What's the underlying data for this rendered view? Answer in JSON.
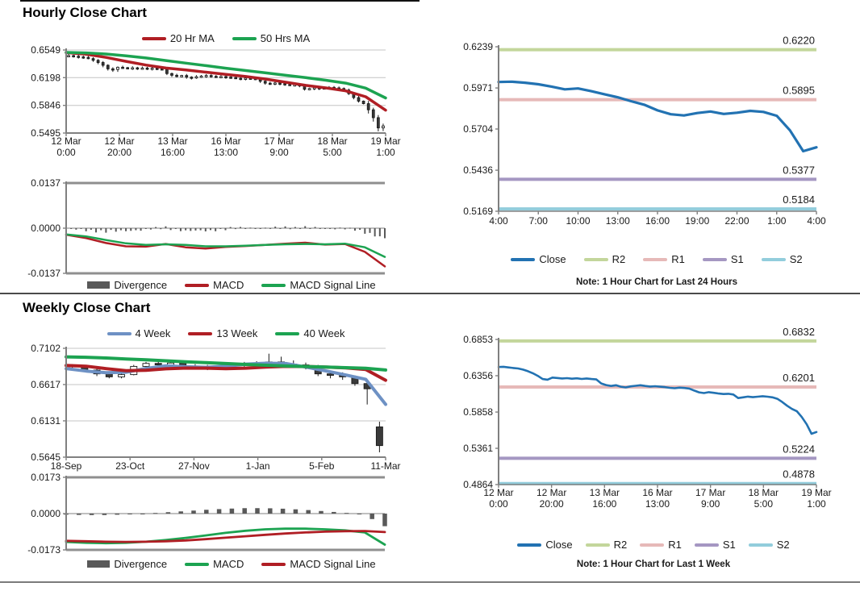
{
  "page": {
    "hourly_title": "Hourly Close Chart",
    "weekly_title": "Weekly Close Chart"
  },
  "colors": {
    "dark_red": "#B01E24",
    "green": "#1CA351",
    "close_blue": "#2272B2",
    "four_week_blue": "#6E91C4",
    "r2_green": "#C3D69B",
    "r1_pink": "#E6B9B8",
    "s1_purple": "#A597C2",
    "s2_cyan": "#92CDDC",
    "divergence_gray": "#595959",
    "grid_gray": "#C4C4C4",
    "axis_gray": "#808080"
  },
  "chart_data": [
    {
      "id": "hourly_close",
      "type": "candlestick",
      "title": "Hourly Close Chart",
      "ylim": [
        0.5495,
        0.6549
      ],
      "y_ticks": [
        {
          "label": "0.6549",
          "v": 0.6549
        },
        {
          "label": "0.6198",
          "v": 0.6198
        },
        {
          "label": "0.5846",
          "v": 0.5846
        },
        {
          "label": "0.5495",
          "v": 0.5495
        }
      ],
      "gridlines": true,
      "x_labels": [
        [
          "12 Mar",
          "0:00"
        ],
        [
          "12 Mar",
          "20:00"
        ],
        [
          "13 Mar",
          "16:00"
        ],
        [
          "16 Mar",
          "13:00"
        ],
        [
          "17 Mar",
          "9:00"
        ],
        [
          "18 Mar",
          "5:00"
        ],
        [
          "19 Mar",
          "1:00"
        ]
      ],
      "legend": [
        {
          "label": "20 Hr MA",
          "color": "#B01E24"
        },
        {
          "label": "50 Hrs MA",
          "color": "#1CA351"
        }
      ],
      "close_values": [
        0.6475,
        0.6478,
        0.647,
        0.6462,
        0.6455,
        0.644,
        0.6418,
        0.639,
        0.6355,
        0.631,
        0.6302,
        0.633,
        0.6325,
        0.6318,
        0.6323,
        0.6315,
        0.632,
        0.6312,
        0.6318,
        0.631,
        0.6305,
        0.625,
        0.6228,
        0.6215,
        0.6225,
        0.6205,
        0.6195,
        0.621,
        0.6218,
        0.6225,
        0.6215,
        0.6208,
        0.6212,
        0.6205,
        0.62,
        0.619,
        0.6185,
        0.6192,
        0.6188,
        0.618,
        0.6152,
        0.6128,
        0.6118,
        0.613,
        0.6122,
        0.6112,
        0.6105,
        0.6108,
        0.6098,
        0.605,
        0.606,
        0.607,
        0.6062,
        0.6068,
        0.6075,
        0.6068,
        0.606,
        0.604,
        0.5995,
        0.5945,
        0.59,
        0.5868,
        0.579,
        0.569,
        0.556,
        0.5585
      ],
      "series": [
        {
          "name": "20 Hr MA",
          "color": "#B01E24",
          "width": 3.5,
          "values": [
            0.6515,
            0.6495,
            0.6455,
            0.6405,
            0.6358,
            0.632,
            0.6295,
            0.6268,
            0.624,
            0.6212,
            0.618,
            0.614,
            0.61,
            0.6068,
            0.603,
            0.5955,
            0.5785
          ]
        },
        {
          "name": "50 Hrs MA",
          "color": "#1CA351",
          "width": 3.5,
          "values": [
            0.6518,
            0.6512,
            0.6498,
            0.6475,
            0.6448,
            0.6415,
            0.6382,
            0.635,
            0.6318,
            0.6288,
            0.6258,
            0.6228,
            0.6198,
            0.6165,
            0.6128,
            0.6065,
            0.594
          ]
        }
      ]
    },
    {
      "id": "hourly_macd",
      "type": "macd",
      "ylim": [
        -0.0137,
        0.0137
      ],
      "y_ticks": [
        {
          "label": "0.0137",
          "v": 0.0137
        },
        {
          "label": "0.0000",
          "v": 0
        },
        {
          "label": "-0.0137",
          "v": -0.0137
        }
      ],
      "legend": [
        {
          "label": "Divergence",
          "color": "#595959",
          "bar": true
        },
        {
          "label": "MACD",
          "color": "#B01E24"
        },
        {
          "label": "MACD Signal Line",
          "color": "#1CA351"
        }
      ],
      "bars": {
        "count": 65,
        "color": "#595959",
        "jitter": 0.0006
      },
      "series": [
        {
          "name": "MACD",
          "color": "#B01E24",
          "width": 2.5,
          "values": [
            -0.002,
            -0.003,
            -0.0045,
            -0.0055,
            -0.0056,
            -0.0048,
            -0.0058,
            -0.0062,
            -0.0057,
            -0.0054,
            -0.0051,
            -0.0047,
            -0.0044,
            -0.005,
            -0.0048,
            -0.0072,
            -0.0116
          ]
        },
        {
          "name": "MACD Signal Line",
          "color": "#1CA351",
          "width": 2.5,
          "values": [
            -0.0019,
            -0.0025,
            -0.0036,
            -0.0046,
            -0.0051,
            -0.0049,
            -0.0051,
            -0.0055,
            -0.0055,
            -0.0053,
            -0.0051,
            -0.0049,
            -0.0048,
            -0.0049,
            -0.0047,
            -0.0058,
            -0.0087
          ]
        }
      ]
    },
    {
      "id": "hourly_sr",
      "type": "line",
      "ylim": [
        0.5169,
        0.6239
      ],
      "y_ticks": [
        {
          "label": "0.6239",
          "v": 0.6239
        },
        {
          "label": "0.5971",
          "v": 0.5971
        },
        {
          "label": "0.5704",
          "v": 0.5704
        },
        {
          "label": "0.5436",
          "v": 0.5436
        },
        {
          "label": "0.5169",
          "v": 0.5169
        }
      ],
      "x_labels": [
        "4:00",
        "7:00",
        "10:00",
        "13:00",
        "16:00",
        "19:00",
        "22:00",
        "1:00",
        "4:00"
      ],
      "hlines": [
        {
          "name": "R2",
          "label": "0.6220",
          "value": 0.622,
          "color": "#C3D69B"
        },
        {
          "name": "R1",
          "label": "0.5895",
          "value": 0.5895,
          "color": "#E6B9B8"
        },
        {
          "name": "S1",
          "label": "0.5377",
          "value": 0.5377,
          "color": "#A597C2"
        },
        {
          "name": "S2",
          "label": "0.5184",
          "value": 0.5184,
          "color": "#92CDDC"
        }
      ],
      "legend": [
        {
          "label": "Close",
          "color": "#2272B2"
        },
        {
          "label": "R2",
          "color": "#C3D69B"
        },
        {
          "label": "R1",
          "color": "#E6B9B8"
        },
        {
          "label": "S1",
          "color": "#A597C2"
        },
        {
          "label": "S2",
          "color": "#92CDDC"
        }
      ],
      "note": "Note: 1 Hour Chart for Last 24 Hours",
      "series": [
        {
          "name": "Close",
          "color": "#2272B2",
          "width": 3.2,
          "values": [
            0.601,
            0.6012,
            0.6005,
            0.5995,
            0.598,
            0.5962,
            0.5968,
            0.595,
            0.593,
            0.591,
            0.5885,
            0.5862,
            0.5825,
            0.58,
            0.5792,
            0.5808,
            0.5818,
            0.5802,
            0.581,
            0.5822,
            0.5815,
            0.579,
            0.5695,
            0.556,
            0.5585
          ]
        }
      ]
    },
    {
      "id": "weekly_close",
      "type": "candlestick",
      "title": "Weekly Close Chart",
      "ylim": [
        0.5645,
        0.7102
      ],
      "y_ticks": [
        {
          "label": "0.7102",
          "v": 0.7102
        },
        {
          "label": "0.6617",
          "v": 0.6617
        },
        {
          "label": "0.6131",
          "v": 0.6131
        },
        {
          "label": "0.5645",
          "v": 0.5645
        }
      ],
      "gridlines": true,
      "x_labels": [
        "18-Sep",
        "23-Oct",
        "27-Nov",
        "1-Jan",
        "5-Feb",
        "11-Mar"
      ],
      "legend": [
        {
          "label": "4 Week",
          "color": "#6E91C4"
        },
        {
          "label": "13 Week",
          "color": "#B01E24"
        },
        {
          "label": "40 Week",
          "color": "#1CA351"
        }
      ],
      "candles": [
        [
          0.687,
          0.689,
          0.684,
          0.6855
        ],
        [
          0.6855,
          0.6865,
          0.679,
          0.681
        ],
        [
          0.681,
          0.683,
          0.673,
          0.676
        ],
        [
          0.676,
          0.679,
          0.67,
          0.672
        ],
        [
          0.672,
          0.677,
          0.67,
          0.675
        ],
        [
          0.675,
          0.688,
          0.674,
          0.686
        ],
        [
          0.686,
          0.692,
          0.684,
          0.69
        ],
        [
          0.69,
          0.693,
          0.686,
          0.688
        ],
        [
          0.688,
          0.693,
          0.686,
          0.6905
        ],
        [
          0.6905,
          0.692,
          0.684,
          0.686
        ],
        [
          0.686,
          0.689,
          0.682,
          0.685
        ],
        [
          0.685,
          0.688,
          0.681,
          0.684
        ],
        [
          0.684,
          0.687,
          0.682,
          0.685
        ],
        [
          0.685,
          0.69,
          0.683,
          0.688
        ],
        [
          0.688,
          0.692,
          0.685,
          0.6895
        ],
        [
          0.6895,
          0.693,
          0.686,
          0.6905
        ],
        [
          0.6905,
          0.703,
          0.687,
          0.692
        ],
        [
          0.692,
          0.699,
          0.688,
          0.689
        ],
        [
          0.689,
          0.694,
          0.686,
          0.688
        ],
        [
          0.688,
          0.691,
          0.682,
          0.686
        ],
        [
          0.686,
          0.688,
          0.673,
          0.676
        ],
        [
          0.676,
          0.68,
          0.67,
          0.674
        ],
        [
          0.674,
          0.678,
          0.668,
          0.672
        ],
        [
          0.672,
          0.674,
          0.66,
          0.663
        ],
        [
          0.663,
          0.668,
          0.635,
          0.656
        ],
        [
          0.605,
          0.612,
          0.571,
          0.58
        ]
      ],
      "series": [
        {
          "name": "4 Week",
          "color": "#6E91C4",
          "width": 4,
          "values": [
            0.683,
            0.6798,
            0.6775,
            0.6782,
            0.6832,
            0.6868,
            0.6855,
            0.6848,
            0.6862,
            0.689,
            0.6902,
            0.6898,
            0.6852,
            0.68,
            0.6745,
            0.6688,
            0.6352
          ]
        },
        {
          "name": "13 Week",
          "color": "#B01E24",
          "width": 4,
          "values": [
            0.6872,
            0.6862,
            0.683,
            0.6802,
            0.6808,
            0.6828,
            0.6838,
            0.6836,
            0.683,
            0.6836,
            0.685,
            0.686,
            0.6858,
            0.685,
            0.684,
            0.6818,
            0.6675
          ]
        },
        {
          "name": "40 Week",
          "color": "#1CA351",
          "width": 4,
          "values": [
            0.6988,
            0.6982,
            0.6972,
            0.696,
            0.6948,
            0.6935,
            0.6922,
            0.691,
            0.6898,
            0.6886,
            0.6875,
            0.6866,
            0.6858,
            0.685,
            0.6843,
            0.6835,
            0.6812
          ]
        }
      ]
    },
    {
      "id": "weekly_macd",
      "type": "macd",
      "ylim": [
        -0.0173,
        0.0173
      ],
      "y_ticks": [
        {
          "label": "0.0173",
          "v": 0.0173
        },
        {
          "label": "0.0000",
          "v": 0
        },
        {
          "label": "-0.0173",
          "v": -0.0173
        }
      ],
      "legend": [
        {
          "label": "Divergence",
          "color": "#595959",
          "bar": true
        },
        {
          "label": "MACD",
          "color": "#1CA351"
        },
        {
          "label": "MACD Signal Line",
          "color": "#B01E24"
        }
      ],
      "bars": {
        "count": 26,
        "color": "#595959",
        "jitter": 0
      },
      "series": [
        {
          "name": "MACD",
          "color": "#1CA351",
          "width": 2.8,
          "values": [
            -0.0135,
            -0.0139,
            -0.0141,
            -0.0139,
            -0.0134,
            -0.0126,
            -0.0116,
            -0.0104,
            -0.0092,
            -0.0082,
            -0.0075,
            -0.0072,
            -0.0072,
            -0.0075,
            -0.008,
            -0.009,
            -0.0148
          ]
        },
        {
          "name": "MACD Signal Line",
          "color": "#B01E24",
          "width": 2.8,
          "values": [
            -0.013,
            -0.0132,
            -0.0134,
            -0.0135,
            -0.0134,
            -0.0132,
            -0.0128,
            -0.0122,
            -0.0115,
            -0.0108,
            -0.0101,
            -0.0095,
            -0.009,
            -0.0086,
            -0.0084,
            -0.0083,
            -0.0088
          ]
        }
      ]
    },
    {
      "id": "weekly_sr",
      "type": "line",
      "ylim": [
        0.4864,
        0.6853
      ],
      "y_ticks": [
        {
          "label": "0.6853",
          "v": 0.6853
        },
        {
          "label": "0.6356",
          "v": 0.6356
        },
        {
          "label": "0.5858",
          "v": 0.5858
        },
        {
          "label": "0.5361",
          "v": 0.5361
        },
        {
          "label": "0.4864",
          "v": 0.4864
        }
      ],
      "x_labels": [
        [
          "12 Mar",
          "0:00"
        ],
        [
          "12 Mar",
          "20:00"
        ],
        [
          "13 Mar",
          "16:00"
        ],
        [
          "16 Mar",
          "13:00"
        ],
        [
          "17 Mar",
          "9:00"
        ],
        [
          "18 Mar",
          "5:00"
        ],
        [
          "19 Mar",
          "1:00"
        ]
      ],
      "hlines": [
        {
          "name": "R2",
          "label": "0.6832",
          "value": 0.6832,
          "color": "#C3D69B"
        },
        {
          "name": "R1",
          "label": "0.6201",
          "value": 0.6201,
          "color": "#E6B9B8"
        },
        {
          "name": "S1",
          "label": "0.5224",
          "value": 0.5224,
          "color": "#A597C2"
        },
        {
          "name": "S2",
          "label": "0.4878",
          "value": 0.4878,
          "color": "#92CDDC"
        }
      ],
      "legend": [
        {
          "label": "Close",
          "color": "#2272B2"
        },
        {
          "label": "R2",
          "color": "#C3D69B"
        },
        {
          "label": "R1",
          "color": "#E6B9B8"
        },
        {
          "label": "S1",
          "color": "#A597C2"
        },
        {
          "label": "S2",
          "color": "#92CDDC"
        }
      ],
      "note": "Note: 1 Hour Chart for Last 1 Week",
      "series": [
        {
          "name": "Close",
          "color": "#2272B2",
          "width": 2.6,
          "values": [
            0.6475,
            0.6478,
            0.647,
            0.6462,
            0.6455,
            0.644,
            0.6418,
            0.639,
            0.6355,
            0.631,
            0.6302,
            0.633,
            0.6325,
            0.6318,
            0.6323,
            0.6315,
            0.632,
            0.6312,
            0.6318,
            0.631,
            0.6305,
            0.625,
            0.6228,
            0.6215,
            0.6225,
            0.6205,
            0.6195,
            0.621,
            0.6218,
            0.6225,
            0.6215,
            0.6208,
            0.6212,
            0.6205,
            0.62,
            0.619,
            0.6185,
            0.6192,
            0.6188,
            0.618,
            0.6152,
            0.6128,
            0.6118,
            0.613,
            0.6122,
            0.6112,
            0.6105,
            0.6108,
            0.6098,
            0.605,
            0.606,
            0.607,
            0.6062,
            0.6068,
            0.6075,
            0.6068,
            0.606,
            0.604,
            0.5995,
            0.5945,
            0.59,
            0.5868,
            0.579,
            0.569,
            0.556,
            0.5585
          ]
        }
      ]
    }
  ]
}
